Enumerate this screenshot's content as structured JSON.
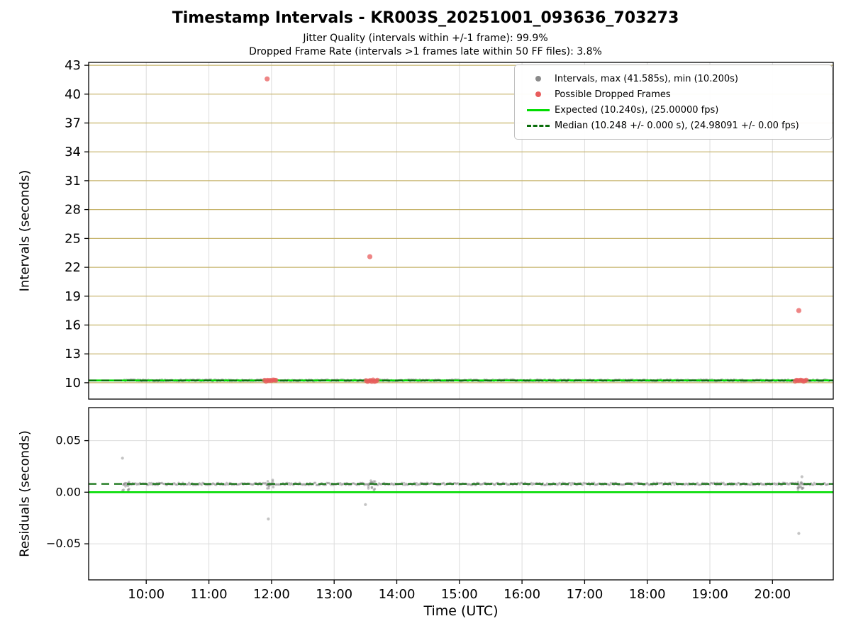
{
  "title": "Timestamp Intervals - KR003S_20251001_093636_703273",
  "subtitle_line1": "Jitter Quality (intervals within +/-1 frame): 99.9%",
  "subtitle_line2": "Dropped Frame Rate (intervals >1 frames late within 50 FF files): 3.8%",
  "chart_data": {
    "type": "scatter",
    "xlabel": "Time (UTC)",
    "x_range_hours": [
      9.08,
      20.97
    ],
    "x_ticks": [
      {
        "hour": 10,
        "label": "10:00"
      },
      {
        "hour": 11,
        "label": "11:00"
      },
      {
        "hour": 12,
        "label": "12:00"
      },
      {
        "hour": 13,
        "label": "13:00"
      },
      {
        "hour": 14,
        "label": "14:00"
      },
      {
        "hour": 15,
        "label": "15:00"
      },
      {
        "hour": 16,
        "label": "16:00"
      },
      {
        "hour": 17,
        "label": "17:00"
      },
      {
        "hour": 18,
        "label": "18:00"
      },
      {
        "hour": 19,
        "label": "19:00"
      },
      {
        "hour": 20,
        "label": "20:00"
      }
    ],
    "top_plot": {
      "ylabel": "Intervals (seconds)",
      "ylim": [
        8.3,
        43.3
      ],
      "y_ticks": [
        10,
        13,
        16,
        19,
        22,
        25,
        28,
        31,
        34,
        37,
        40,
        43
      ],
      "baseline": {
        "y": 10.24,
        "t_start": 9.65,
        "t_end": 20.9
      },
      "max_interval_s": 41.585,
      "min_interval_s": 10.2,
      "expected": {
        "y": 10.24,
        "fps": "25.00000"
      },
      "median": {
        "y": 10.248,
        "fps": "24.98091"
      },
      "outliers": [
        {
          "t": 11.93,
          "y": 41.585
        },
        {
          "t": 13.57,
          "y": 23.1
        },
        {
          "t": 20.42,
          "y": 17.5
        }
      ],
      "dropped_clusters": [
        {
          "t": 11.98,
          "y": 10.21,
          "half_width": 0.09
        },
        {
          "t": 13.6,
          "y": 10.21,
          "half_width": 0.09
        },
        {
          "t": 20.45,
          "y": 10.21,
          "half_width": 0.09
        }
      ]
    },
    "bottom_plot": {
      "ylabel": "Residuals (seconds)",
      "ylim": [
        -0.085,
        0.082
      ],
      "y_ticks": [
        0.05,
        0,
        -0.05
      ],
      "y_tick_labels": [
        "0.05",
        "0.00",
        "−0.05"
      ],
      "baseline": {
        "y": 0.008,
        "t_start": 9.65,
        "t_end": 20.9
      },
      "expected_y": 0.0,
      "median_y": 0.008,
      "outliers": [
        {
          "t": 9.62,
          "y": 0.033
        },
        {
          "t": 11.95,
          "y": -0.026
        },
        {
          "t": 13.5,
          "y": -0.012
        },
        {
          "t": 20.42,
          "y": -0.04
        },
        {
          "t": 20.47,
          "y": 0.015
        }
      ],
      "clusters": [
        {
          "t": 9.67,
          "y": 0.006
        },
        {
          "t": 11.98,
          "y": 0.007
        },
        {
          "t": 13.6,
          "y": 0.007
        },
        {
          "t": 20.45,
          "y": 0.007
        }
      ]
    },
    "legend": [
      {
        "marker": "gray-dot",
        "label": "Intervals, max (41.585s), min (10.200s)"
      },
      {
        "marker": "red-dot",
        "label": "Possible Dropped Frames"
      },
      {
        "marker": "green-solid-line",
        "label": "Expected (10.240s), (25.00000 fps)"
      },
      {
        "marker": "darkgreen-dashed-line",
        "label": "Median (10.248 +/- 0.000 s), (24.98091 +/- 0.00 fps)"
      }
    ],
    "colors": {
      "tan_grid": "#c6b36a",
      "light_grid": "#dcdcdc",
      "interval_gray": "#8a8a8a",
      "dropped_red": "#e85c5c",
      "expected_green": "#00dc00",
      "median_darkgreen": "#0a6d0a"
    }
  }
}
